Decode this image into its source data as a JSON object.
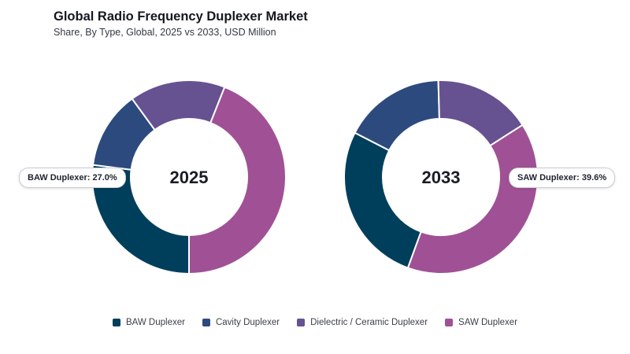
{
  "title": "Global Radio Frequency Duplexer Market",
  "subtitle": "Share, By Type, Global, 2025 vs 2033, USD Million",
  "colors": {
    "BAW Duplexer": "#003f5c",
    "Cavity Duplexer": "#2c4a7d",
    "Dielectric / Ceramic Duplexer": "#665191",
    "SAW Duplexer": "#a05195"
  },
  "callouts": {
    "left": "BAW Duplexer: 27.0%",
    "right": "SAW Duplexer: 39.6%"
  },
  "chart_data": [
    {
      "type": "pie",
      "title": "2025",
      "center_label": "2025",
      "categories": [
        "BAW Duplexer",
        "Cavity Duplexer",
        "Dielectric / Ceramic Duplexer",
        "SAW Duplexer"
      ],
      "values": [
        27.0,
        13.0,
        16.0,
        44.0
      ]
    },
    {
      "type": "pie",
      "title": "2033",
      "center_label": "2033",
      "categories": [
        "BAW Duplexer",
        "Cavity Duplexer",
        "Dielectric / Ceramic Duplexer",
        "SAW Duplexer"
      ],
      "values": [
        27.0,
        17.0,
        16.4,
        39.6
      ]
    }
  ],
  "legend": [
    {
      "label": "BAW Duplexer",
      "color": "#003f5c"
    },
    {
      "label": "Cavity Duplexer",
      "color": "#2c4a7d"
    },
    {
      "label": "Dielectric / Ceramic Duplexer",
      "color": "#665191"
    },
    {
      "label": "SAW Duplexer",
      "color": "#a05195"
    }
  ]
}
